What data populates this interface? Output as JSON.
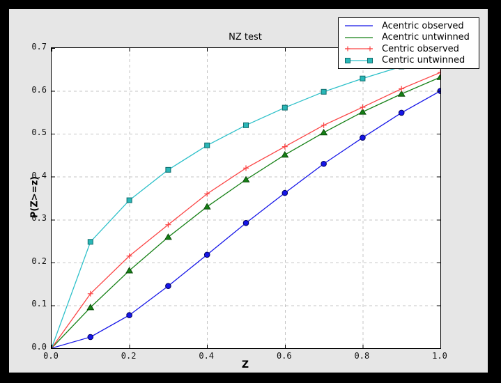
{
  "window": {
    "background": "#000000",
    "figure_background": "#e6e6e6",
    "plot_background": "#ffffff",
    "spine_color": "#000000"
  },
  "chart_data": {
    "type": "line",
    "title": "NZ test",
    "xlabel": "Z",
    "ylabel": "P(Z>=z)",
    "xlim": [
      0.0,
      1.0
    ],
    "ylim": [
      0.0,
      0.7
    ],
    "x_ticks": [
      "0.0",
      "0.2",
      "0.4",
      "0.6",
      "0.8",
      "1.0"
    ],
    "y_ticks": [
      "0.0",
      "0.1",
      "0.2",
      "0.3",
      "0.4",
      "0.5",
      "0.6",
      "0.7"
    ],
    "grid": {
      "enabled": true,
      "style": "dashed",
      "color": "#c4c4c4",
      "x_lines": [
        0.2,
        0.4,
        0.6,
        0.8
      ],
      "y_lines": [
        0.1,
        0.2,
        0.3,
        0.4,
        0.5,
        0.6
      ]
    },
    "legend": {
      "position": "top-right"
    },
    "x": [
      0.0,
      0.1,
      0.2,
      0.3,
      0.4,
      0.5,
      0.6,
      0.7,
      0.8,
      0.9,
      1.0
    ],
    "series": [
      {
        "name": "Acentric observed",
        "line_color": "#1515e8",
        "marker": "circle",
        "marker_fill": "#1515e8",
        "marker_edge": "#00005e",
        "legend_marker": "none",
        "values": [
          0.0,
          0.026,
          0.077,
          0.145,
          0.218,
          0.292,
          0.362,
          0.43,
          0.491,
          0.549,
          0.6
        ]
      },
      {
        "name": "Acentric untwinned",
        "line_color": "#158015",
        "marker": "triangle",
        "marker_fill": "#158015",
        "marker_edge": "#0a4a0a",
        "legend_marker": "none",
        "values": [
          0.0,
          0.095,
          0.181,
          0.259,
          0.33,
          0.393,
          0.451,
          0.503,
          0.551,
          0.593,
          0.632
        ]
      },
      {
        "name": "Centric observed",
        "line_color": "#fb4444",
        "marker": "plus",
        "marker_fill": "#fb4444",
        "marker_edge": "#fb4444",
        "legend_marker": "plus",
        "values": [
          0.0,
          0.127,
          0.215,
          0.288,
          0.36,
          0.42,
          0.47,
          0.52,
          0.562,
          0.605,
          0.643
        ]
      },
      {
        "name": "Centric untwinned",
        "line_color": "#2cc0c9",
        "marker": "square",
        "marker_fill": "#2ab7b7",
        "marker_edge": "#0e6b6b",
        "legend_marker": "square",
        "values": [
          0.0,
          0.248,
          0.345,
          0.416,
          0.473,
          0.52,
          0.561,
          0.598,
          0.629,
          0.657,
          0.683
        ]
      }
    ]
  }
}
